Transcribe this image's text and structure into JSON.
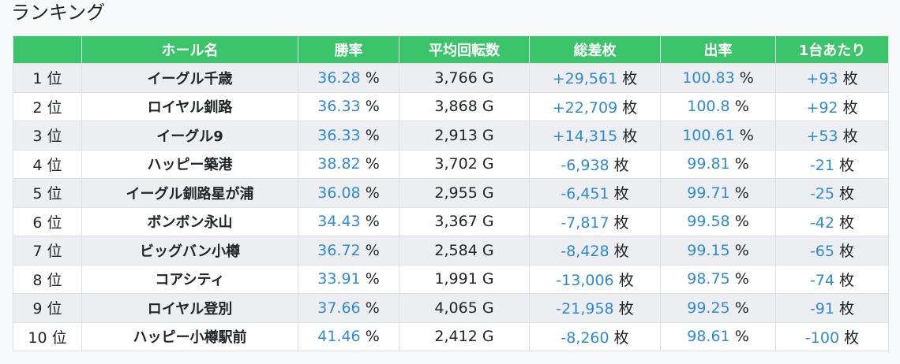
{
  "title": "ランキング",
  "table": {
    "headers": [
      "",
      "ホール名",
      "勝率",
      "平均回転数",
      "総差枚",
      "出率",
      "1台あたり"
    ],
    "rows": [
      [
        "1 位",
        "イーグル千歳",
        {
          "value": "36.28",
          "unit": "%"
        },
        "3,766 G",
        {
          "value": "+29,561",
          "unit": "枚"
        },
        {
          "value": "100.83",
          "unit": "%"
        },
        {
          "value": "+93",
          "unit": "枚"
        }
      ],
      [
        "2 位",
        "ロイヤル釧路",
        {
          "value": "36.33",
          "unit": "%"
        },
        "3,868 G",
        {
          "value": "+22,709",
          "unit": "枚"
        },
        {
          "value": "100.8",
          "unit": "%"
        },
        {
          "value": "+92",
          "unit": "枚"
        }
      ],
      [
        "3 位",
        "イーグル9",
        {
          "value": "36.33",
          "unit": "%"
        },
        "2,913 G",
        {
          "value": "+14,315",
          "unit": "枚"
        },
        {
          "value": "100.61",
          "unit": "%"
        },
        {
          "value": "+53",
          "unit": "枚"
        }
      ],
      [
        "4 位",
        "ハッピー築港",
        {
          "value": "38.82",
          "unit": "%"
        },
        "3,702 G",
        {
          "value": "-6,938",
          "unit": "枚"
        },
        {
          "value": "99.81",
          "unit": "%"
        },
        {
          "value": "-21",
          "unit": "枚"
        }
      ],
      [
        "5 位",
        "イーグル釧路星が浦",
        {
          "value": "36.08",
          "unit": "%"
        },
        "2,955 G",
        {
          "value": "-6,451",
          "unit": "枚"
        },
        {
          "value": "99.71",
          "unit": "%"
        },
        {
          "value": "-25",
          "unit": "枚"
        }
      ],
      [
        "6 位",
        "ボンボン永山",
        {
          "value": "34.43",
          "unit": "%"
        },
        "3,367 G",
        {
          "value": "-7,817",
          "unit": "枚"
        },
        {
          "value": "99.58",
          "unit": "%"
        },
        {
          "value": "-42",
          "unit": "枚"
        }
      ],
      [
        "7 位",
        "ビッグバン小樽",
        {
          "value": "36.72",
          "unit": "%"
        },
        "2,584 G",
        {
          "value": "-8,428",
          "unit": "枚"
        },
        {
          "value": "99.15",
          "unit": "%"
        },
        {
          "value": "-65",
          "unit": "枚"
        }
      ],
      [
        "8 位",
        "コアシティ",
        {
          "value": "33.91",
          "unit": "%"
        },
        "1,991 G",
        {
          "value": "-13,006",
          "unit": "枚"
        },
        {
          "value": "98.75",
          "unit": "%"
        },
        {
          "value": "-74",
          "unit": "枚"
        }
      ],
      [
        "9 位",
        "ロイヤル登別",
        {
          "value": "37.66",
          "unit": "%"
        },
        "4,065 G",
        {
          "value": "-21,958",
          "unit": "枚"
        },
        {
          "value": "99.25",
          "unit": "%"
        },
        {
          "value": "-91",
          "unit": "枚"
        }
      ],
      [
        "10 位",
        "ハッピー小樽駅前",
        {
          "value": "41.46",
          "unit": "%"
        },
        "2,412 G",
        {
          "value": "-8,260",
          "unit": "枚"
        },
        {
          "value": "98.61",
          "unit": "%"
        },
        {
          "value": "-100",
          "unit": "枚"
        }
      ]
    ]
  }
}
